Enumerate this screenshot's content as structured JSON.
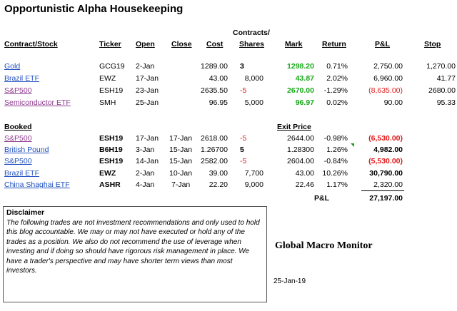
{
  "title": "Opportunistic  Alpha Housekeeping",
  "headers": {
    "contract": "Contract/Stock",
    "ticker": "Ticker",
    "open": "Open",
    "close": "Close",
    "cost": "Cost",
    "contracts_line1": "Contracts/",
    "contracts_line2": "Shares",
    "mark": "Mark",
    "ret": "Return",
    "pl": "P&L",
    "stop": "Stop"
  },
  "open_positions": [
    {
      "name": "Gold",
      "ticker": "GCG19",
      "open": "2-Jan",
      "close": "",
      "cost": "1289.00",
      "qty": "3",
      "mark": "1298.20",
      "ret": "0.71%",
      "pl": "2,750.00",
      "stop": "1,270.00"
    },
    {
      "name": "Brazil ETF",
      "ticker": "EWZ",
      "open": "17-Jan",
      "close": "",
      "cost": "43.00",
      "qty": "8,000",
      "mark": "43.87",
      "ret": "2.02%",
      "pl": "6,960.00",
      "stop": "41.77"
    },
    {
      "name": "S&P500",
      "ticker": "ESH19",
      "open": "23-Jan",
      "close": "",
      "cost": "2635.50",
      "qty": "-5",
      "mark": "2670.00",
      "ret": "-1.29%",
      "pl": "(8,635.00)",
      "stop": "2680.00"
    },
    {
      "name": "Semiconductor ETF",
      "ticker": "SMH",
      "open": "25-Jan",
      "close": "",
      "cost": "96.95",
      "qty": "5,000",
      "mark": "96.97",
      "ret": "0.02%",
      "pl": "90.00",
      "stop": "95.33"
    }
  ],
  "booked_label": "Booked",
  "exit_price_label": "Exit Price",
  "booked": [
    {
      "name": "S&P500",
      "ticker": "ESH19",
      "open": "17-Jan",
      "close": "17-Jan",
      "cost": "2618.00",
      "qty": "-5",
      "exit": "2644.00",
      "ret": "-0.98%",
      "pl": "(6,530.00)"
    },
    {
      "name": "British Pound",
      "ticker": "B6H19",
      "open": "3-Jan",
      "close": "15-Jan",
      "cost": "1.26700",
      "qty": "5",
      "exit": "1.28300",
      "ret": "1.26%",
      "pl": "4,982.00"
    },
    {
      "name": "S&P500",
      "ticker": "ESH19",
      "open": "14-Jan",
      "close": "15-Jan",
      "cost": "2582.00",
      "qty": "-5",
      "exit": "2604.00",
      "ret": "-0.84%",
      "pl": "(5,530.00)"
    },
    {
      "name": "Brazil ETF",
      "ticker": "EWZ",
      "open": "2-Jan",
      "close": "10-Jan",
      "cost": "39.00",
      "qty": "7,700",
      "exit": "43.00",
      "ret": "10.26%",
      "pl": "30,790.00"
    },
    {
      "name": "China  Shaghai ETF",
      "ticker": "ASHR",
      "open": "4-Jan",
      "close": "7-Jan",
      "cost": "22.20",
      "qty": "9,000",
      "exit": "22.46",
      "ret": "1.17%",
      "pl": "2,320.00"
    }
  ],
  "total": {
    "label": "P&L",
    "value": "27,197.00"
  },
  "disclaimer": {
    "title": "Disclaimer",
    "body": "The following trades are not investment recommendations and only used to hold this blog accountable.  We may or may not have executed or hold any of the trades as a position.  We also do not recommend the use of leverage when investing and if doing so should have rigorous risk management in place.  We have a trader's perspective and may have shorter term views than most investors."
  },
  "brand": "Global Macro Monitor",
  "date": "25-Jan-19",
  "colors": {
    "link": "#1f4fbf",
    "visited_link": "#8e3a8e",
    "positive": "#18a818",
    "negative": "#e21a1a"
  }
}
